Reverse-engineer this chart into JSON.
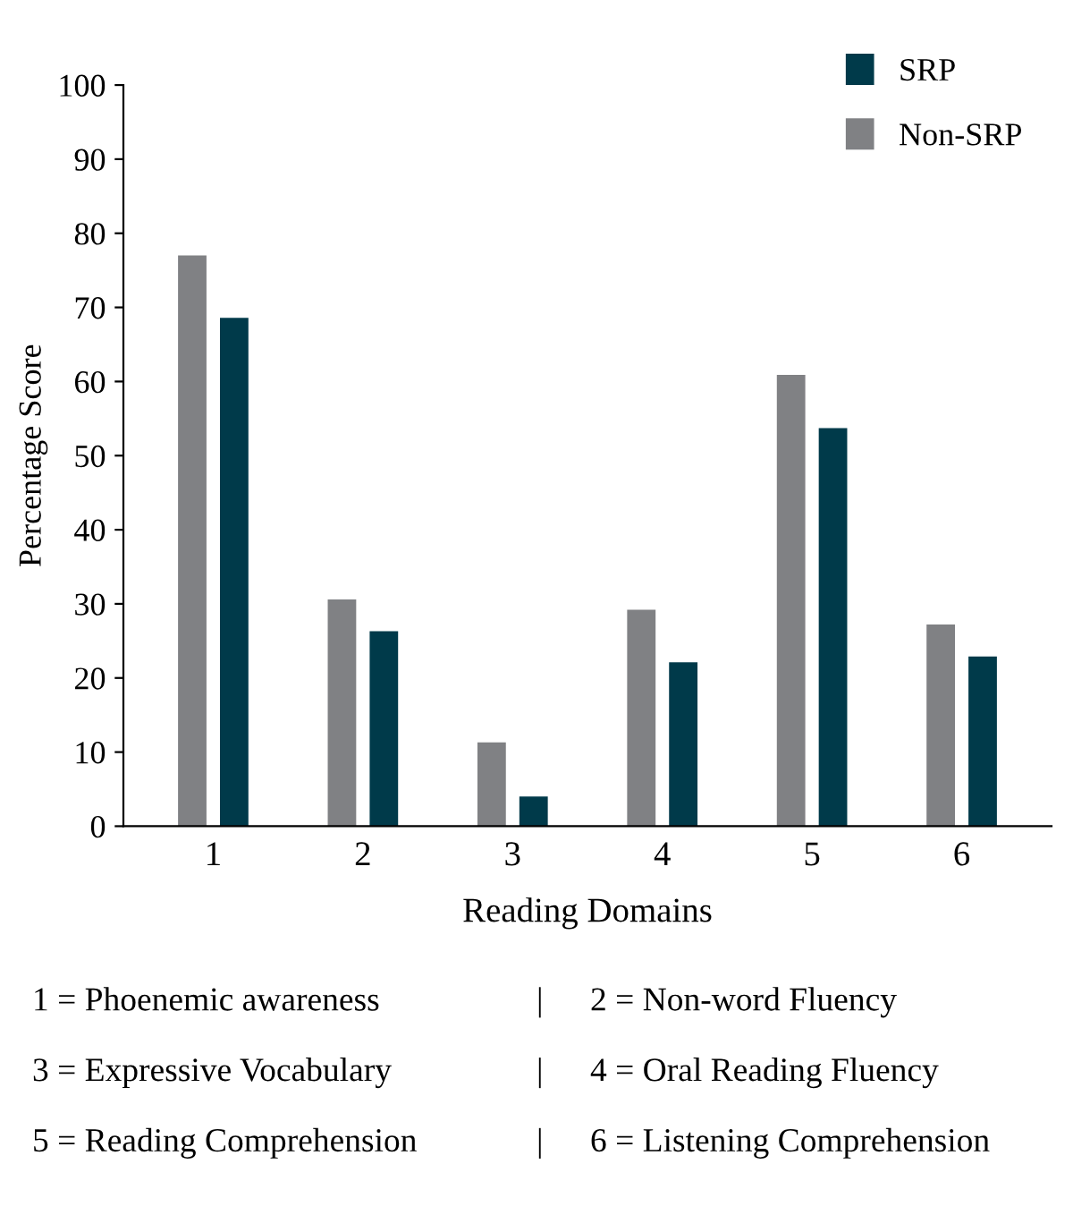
{
  "chart_data": {
    "type": "bar",
    "xlabel": "Reading Domains",
    "ylabel": "Percentage Score",
    "categories": [
      "1",
      "2",
      "3",
      "4",
      "5",
      "6"
    ],
    "series": [
      {
        "name": "Non-SRP",
        "color": "#808184",
        "values": [
          77,
          30.6,
          11.3,
          29.2,
          60.9,
          27.2
        ]
      },
      {
        "name": "SRP",
        "color": "#003a4a",
        "values": [
          68.6,
          26.3,
          4,
          22.1,
          53.7,
          22.9
        ]
      }
    ],
    "ylim": [
      0,
      100
    ],
    "yticks": [
      0,
      10,
      20,
      30,
      40,
      50,
      60,
      70,
      80,
      90,
      100
    ],
    "grid": false,
    "legend": "top right",
    "annotations": [
      "1 = Phoenemic awareness",
      "|",
      "2 = Non-word Fluency",
      "3 = Expressive Vocabulary",
      "|",
      "4 = Oral Reading Fluency",
      "5 = Reading Comprehension",
      "|",
      "6 = Listening Comprehension"
    ]
  }
}
